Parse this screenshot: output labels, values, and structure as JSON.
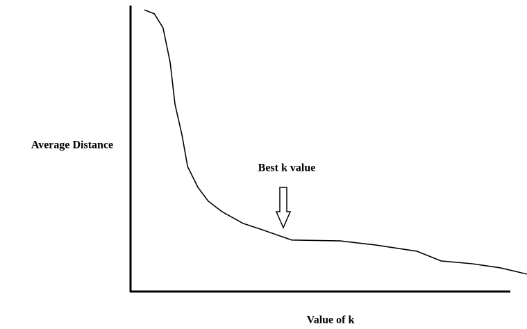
{
  "chart_data": {
    "type": "line",
    "x_label": "Value of k",
    "y_label": "Average Distance",
    "annotation": "Best k value",
    "color": "#000000",
    "xlim": [
      0,
      100
    ],
    "ylim": [
      0,
      100
    ],
    "x": [
      3.5,
      6.0,
      8.2,
      10.0,
      11.2,
      13.0,
      14.4,
      17.0,
      19.6,
      23.1,
      28.4,
      33.6,
      40.6,
      52.9,
      61.6,
      72.2,
      78.3,
      86.2,
      93.2,
      100
    ],
    "values": [
      98.5,
      97.1,
      92.2,
      80.1,
      65.5,
      54.6,
      43.7,
      36.4,
      31.6,
      27.9,
      23.8,
      21.4,
      18.0,
      17.7,
      16.3,
      14.1,
      10.7,
      9.7,
      8.3,
      6.1
    ]
  }
}
